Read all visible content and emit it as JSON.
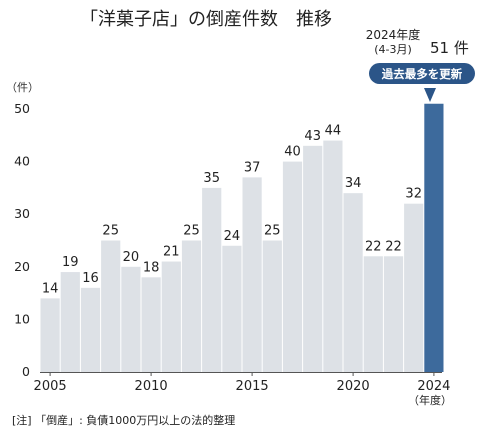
{
  "chart_data": {
    "type": "bar",
    "title": "「洋菓子店」の倒産件数　推移",
    "ylabel": "（件）",
    "ylim": [
      0,
      50
    ],
    "yticks": [
      0,
      10,
      20,
      30,
      40,
      50
    ],
    "x": [
      2005,
      2006,
      2007,
      2008,
      2009,
      2010,
      2011,
      2012,
      2013,
      2014,
      2015,
      2016,
      2017,
      2018,
      2019,
      2020,
      2021,
      2022,
      2023,
      2024
    ],
    "values": [
      14,
      19,
      16,
      25,
      20,
      18,
      21,
      25,
      35,
      24,
      37,
      25,
      40,
      43,
      44,
      34,
      22,
      22,
      32,
      51
    ],
    "xtick_labels": [
      "2005",
      "2010",
      "2015",
      "2020",
      "2024"
    ],
    "xlabel_unit": "（年度）",
    "labels_shown": [
      "14",
      "19",
      "16",
      "25",
      "20",
      "18",
      "21",
      "25",
      "35",
      "24",
      "37",
      "25",
      "40",
      "43",
      "44",
      "34",
      "22",
      "22",
      "32",
      ""
    ],
    "highlight": {
      "period_line1": "2024年度",
      "period_line2": "(4-3月)",
      "value_text": "51 件",
      "badge": "過去最多を更新"
    },
    "note": "[注] 「倒産」: 負債1000万円以上の法的整理",
    "colors": {
      "bar": "#dde1e6",
      "bar_highlight": "#3d6a9c",
      "badge": "#2b5588",
      "axis": "#555555"
    },
    "grid": false
  }
}
